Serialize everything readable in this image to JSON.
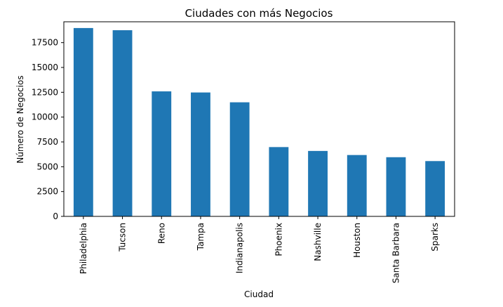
{
  "chart_data": {
    "type": "bar",
    "title": "Ciudades con más Negocios",
    "xlabel": "Ciudad",
    "ylabel": "Número de Negocios",
    "categories": [
      "Philadelphia",
      "Tucson",
      "Reno",
      "Tampa",
      "Indianapolis",
      "Phoenix",
      "Nashville",
      "Houston",
      "Santa Barbara",
      "Sparks"
    ],
    "values": [
      18970,
      18750,
      12590,
      12480,
      11490,
      6980,
      6590,
      6180,
      5960,
      5570
    ],
    "ylim": [
      0,
      19600
    ],
    "yticks": [
      0,
      2500,
      5000,
      7500,
      10000,
      12500,
      15000,
      17500
    ],
    "ytick_labels": [
      "0",
      "2500",
      "5000",
      "7500",
      "10000",
      "12500",
      "15000",
      "17500"
    ],
    "bar_color": "#1f77b4",
    "grid": false,
    "legend": "none"
  }
}
